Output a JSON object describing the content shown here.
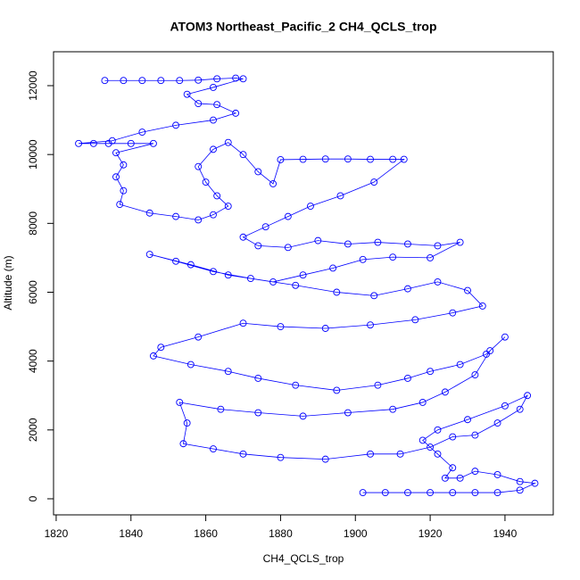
{
  "chart_data": {
    "type": "line",
    "markers": true,
    "title": "ATOM3 Northeast_Pacific_2 CH4_QCLS_trop",
    "x_label": "CH4_QCLS_trop",
    "y_label": "Altitude (m)",
    "color": "#0000ff",
    "grid": false,
    "xlim": [
      1819.3,
      1952.9
    ],
    "ylim": [
      -467,
      12985
    ],
    "xticks": [
      1820,
      1840,
      1860,
      1880,
      1900,
      1920,
      1940
    ],
    "yticks": [
      0,
      2000,
      4000,
      6000,
      8000,
      10000,
      12000
    ],
    "x": [
      1833,
      1838,
      1843,
      1848,
      1853,
      1858,
      1863,
      1868,
      1870,
      1862,
      1855,
      1858,
      1863,
      1868,
      1862,
      1852,
      1843,
      1835,
      1826,
      1830,
      1834,
      1840,
      1846,
      1836,
      1838,
      1836,
      1838,
      1837,
      1845,
      1852,
      1858,
      1862,
      1866,
      1863,
      1860,
      1858,
      1862,
      1866,
      1870,
      1874,
      1878,
      1880,
      1886,
      1892,
      1898,
      1904,
      1910,
      1913,
      1905,
      1896,
      1888,
      1882,
      1876,
      1870,
      1874,
      1882,
      1890,
      1898,
      1906,
      1914,
      1922,
      1928,
      1920,
      1910,
      1902,
      1894,
      1886,
      1878,
      1866,
      1856,
      1845,
      1852,
      1862,
      1872,
      1884,
      1895,
      1905,
      1914,
      1922,
      1930,
      1934,
      1926,
      1916,
      1904,
      1892,
      1880,
      1870,
      1858,
      1848,
      1846,
      1856,
      1866,
      1874,
      1884,
      1895,
      1906,
      1914,
      1920,
      1928,
      1935,
      1940,
      1936,
      1932,
      1924,
      1918,
      1910,
      1898,
      1886,
      1874,
      1864,
      1853,
      1855,
      1854,
      1862,
      1870,
      1880,
      1892,
      1904,
      1912,
      1920,
      1926,
      1932,
      1938,
      1944,
      1946,
      1940,
      1930,
      1922,
      1918,
      1922,
      1926,
      1924,
      1928,
      1932,
      1938,
      1944,
      1948,
      1944,
      1938,
      1932,
      1926,
      1920,
      1914,
      1908,
      1902
    ],
    "values": [
      12150,
      12150,
      12150,
      12150,
      12150,
      12160,
      12200,
      12220,
      12200,
      11950,
      11750,
      11480,
      11450,
      11200,
      11000,
      10850,
      10650,
      10400,
      10320,
      10320,
      10320,
      10320,
      10320,
      10050,
      9700,
      9350,
      8950,
      8550,
      8300,
      8200,
      8100,
      8250,
      8500,
      8800,
      9200,
      9650,
      10150,
      10350,
      10000,
      9500,
      9150,
      9850,
      9860,
      9870,
      9870,
      9860,
      9860,
      9860,
      9200,
      8800,
      8500,
      8200,
      7900,
      7600,
      7350,
      7300,
      7500,
      7400,
      7450,
      7400,
      7350,
      7450,
      7000,
      7020,
      6950,
      6700,
      6500,
      6300,
      6500,
      6800,
      7100,
      6900,
      6600,
      6400,
      6200,
      6000,
      5900,
      6100,
      6300,
      6050,
      5600,
      5400,
      5200,
      5050,
      4950,
      5000,
      5100,
      4700,
      4400,
      4150,
      3900,
      3700,
      3500,
      3300,
      3150,
      3300,
      3500,
      3700,
      3900,
      4200,
      4700,
      4300,
      3600,
      3100,
      2800,
      2600,
      2500,
      2400,
      2500,
      2600,
      2800,
      2200,
      1600,
      1450,
      1300,
      1200,
      1150,
      1300,
      1300,
      1500,
      1800,
      1850,
      2200,
      2600,
      3000,
      2700,
      2300,
      2000,
      1700,
      1300,
      900,
      600,
      600,
      800,
      700,
      500,
      450,
      250,
      180,
      180,
      180,
      180,
      180,
      180,
      180
    ]
  }
}
